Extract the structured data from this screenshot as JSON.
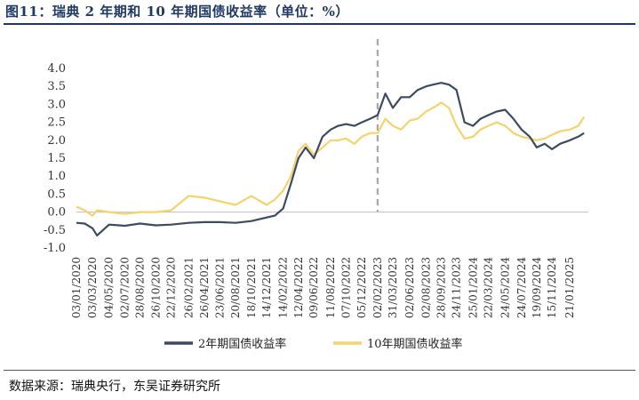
{
  "header": {
    "title": "图11：瑞典 2 年期和 10 年期国债收益率（单位：%）"
  },
  "footer": {
    "source": "数据来源：瑞典央行，东吴证券研究所"
  },
  "chart_data": {
    "type": "line",
    "title": "图11：瑞典 2 年期和 10 年期国债收益率（单位：%）",
    "xlabel": "",
    "ylabel": "",
    "ylim": [
      -1.0,
      4.0
    ],
    "yticks": [
      "4.0",
      "3.5",
      "3.0",
      "2.5",
      "2.0",
      "1.5",
      "1.0",
      "0.5",
      "0.0",
      "-0.5",
      "-1.0"
    ],
    "xticks": [
      "03/01/2020",
      "03/03/2020",
      "04/05/2020",
      "02/07/2020",
      "28/08/2020",
      "26/10/2020",
      "22/12/2020",
      "26/02/2021",
      "26/04/2021",
      "23/06/2021",
      "20/08/2021",
      "18/10/2021",
      "14/12/2021",
      "14/02/2022",
      "12/04/2022",
      "09/06/2022",
      "11/08/2022",
      "07/10/2022",
      "05/12/2022",
      "02/02/2023",
      "31/03/2023",
      "02/06/2023",
      "02/08/2023",
      "28/09/2023",
      "24/11/2023",
      "25/01/2024",
      "22/03/2024",
      "24/05/2024",
      "24/07/2024",
      "19/09/2024",
      "15/11/2024",
      "21/01/2025"
    ],
    "grid": false,
    "legend": "bottom",
    "reference_line": {
      "x": "02/02/2023",
      "style": "dashed"
    },
    "series": [
      {
        "name": "2年期国债收益率",
        "color": "#3c4a63",
        "x": [
          "03/01/2020",
          "03/02/2020",
          "03/03/2020",
          "20/03/2020",
          "04/05/2020",
          "02/07/2020",
          "28/08/2020",
          "26/10/2020",
          "22/12/2020",
          "26/02/2021",
          "26/04/2021",
          "23/06/2021",
          "20/08/2021",
          "18/10/2021",
          "14/12/2021",
          "14/01/2022",
          "14/02/2022",
          "15/03/2022",
          "12/04/2022",
          "09/05/2022",
          "09/06/2022",
          "11/07/2022",
          "11/08/2022",
          "07/09/2022",
          "07/10/2022",
          "07/11/2022",
          "05/12/2022",
          "05/01/2023",
          "02/02/2023",
          "03/03/2023",
          "31/03/2023",
          "01/05/2023",
          "02/06/2023",
          "02/07/2023",
          "02/08/2023",
          "28/08/2023",
          "28/09/2023",
          "27/10/2023",
          "24/11/2023",
          "24/12/2023",
          "25/01/2024",
          "22/02/2024",
          "22/03/2024",
          "22/04/2024",
          "24/05/2024",
          "24/06/2024",
          "24/07/2024",
          "24/08/2024",
          "19/09/2024",
          "19/10/2024",
          "15/11/2024",
          "15/12/2024",
          "21/01/2025",
          "21/02/2025",
          "15/03/2025"
        ],
        "values": [
          -0.3,
          -0.32,
          -0.45,
          -0.65,
          -0.35,
          -0.38,
          -0.32,
          -0.37,
          -0.35,
          -0.3,
          -0.28,
          -0.28,
          -0.3,
          -0.25,
          -0.15,
          -0.1,
          0.1,
          0.8,
          1.5,
          1.8,
          1.5,
          2.1,
          2.3,
          2.4,
          2.45,
          2.4,
          2.5,
          2.6,
          2.7,
          3.3,
          2.9,
          3.2,
          3.2,
          3.4,
          3.5,
          3.55,
          3.6,
          3.55,
          3.4,
          2.5,
          2.4,
          2.6,
          2.7,
          2.8,
          2.85,
          2.6,
          2.3,
          2.1,
          1.8,
          1.9,
          1.75,
          1.9,
          2.0,
          2.1,
          2.2
        ]
      },
      {
        "name": "10年期国债收益率",
        "color": "#f5d36b",
        "x": [
          "03/01/2020",
          "03/02/2020",
          "03/03/2020",
          "20/03/2020",
          "04/05/2020",
          "02/07/2020",
          "28/08/2020",
          "26/10/2020",
          "22/12/2020",
          "26/02/2021",
          "26/04/2021",
          "23/06/2021",
          "20/08/2021",
          "18/10/2021",
          "14/12/2021",
          "14/01/2022",
          "14/02/2022",
          "15/03/2022",
          "12/04/2022",
          "09/05/2022",
          "09/06/2022",
          "11/07/2022",
          "11/08/2022",
          "07/09/2022",
          "07/10/2022",
          "07/11/2022",
          "05/12/2022",
          "05/01/2023",
          "02/02/2023",
          "03/03/2023",
          "31/03/2023",
          "01/05/2023",
          "02/06/2023",
          "02/07/2023",
          "02/08/2023",
          "28/08/2023",
          "28/09/2023",
          "27/10/2023",
          "24/11/2023",
          "24/12/2023",
          "25/01/2024",
          "22/02/2024",
          "22/03/2024",
          "22/04/2024",
          "24/05/2024",
          "24/06/2024",
          "24/07/2024",
          "24/08/2024",
          "19/09/2024",
          "19/10/2024",
          "15/11/2024",
          "15/12/2024",
          "21/01/2025",
          "21/02/2025",
          "15/03/2025"
        ],
        "values": [
          0.15,
          0.05,
          -0.1,
          0.05,
          0.0,
          -0.05,
          0.0,
          0.0,
          0.05,
          0.45,
          0.4,
          0.3,
          0.2,
          0.45,
          0.2,
          0.35,
          0.6,
          1.0,
          1.7,
          1.9,
          1.6,
          1.8,
          2.0,
          2.0,
          2.05,
          1.9,
          2.1,
          2.2,
          2.2,
          2.6,
          2.4,
          2.3,
          2.55,
          2.6,
          2.8,
          2.9,
          3.05,
          2.9,
          2.4,
          2.05,
          2.1,
          2.3,
          2.4,
          2.5,
          2.4,
          2.2,
          2.1,
          2.05,
          2.0,
          2.05,
          2.15,
          2.25,
          2.3,
          2.4,
          2.65
        ]
      }
    ]
  }
}
